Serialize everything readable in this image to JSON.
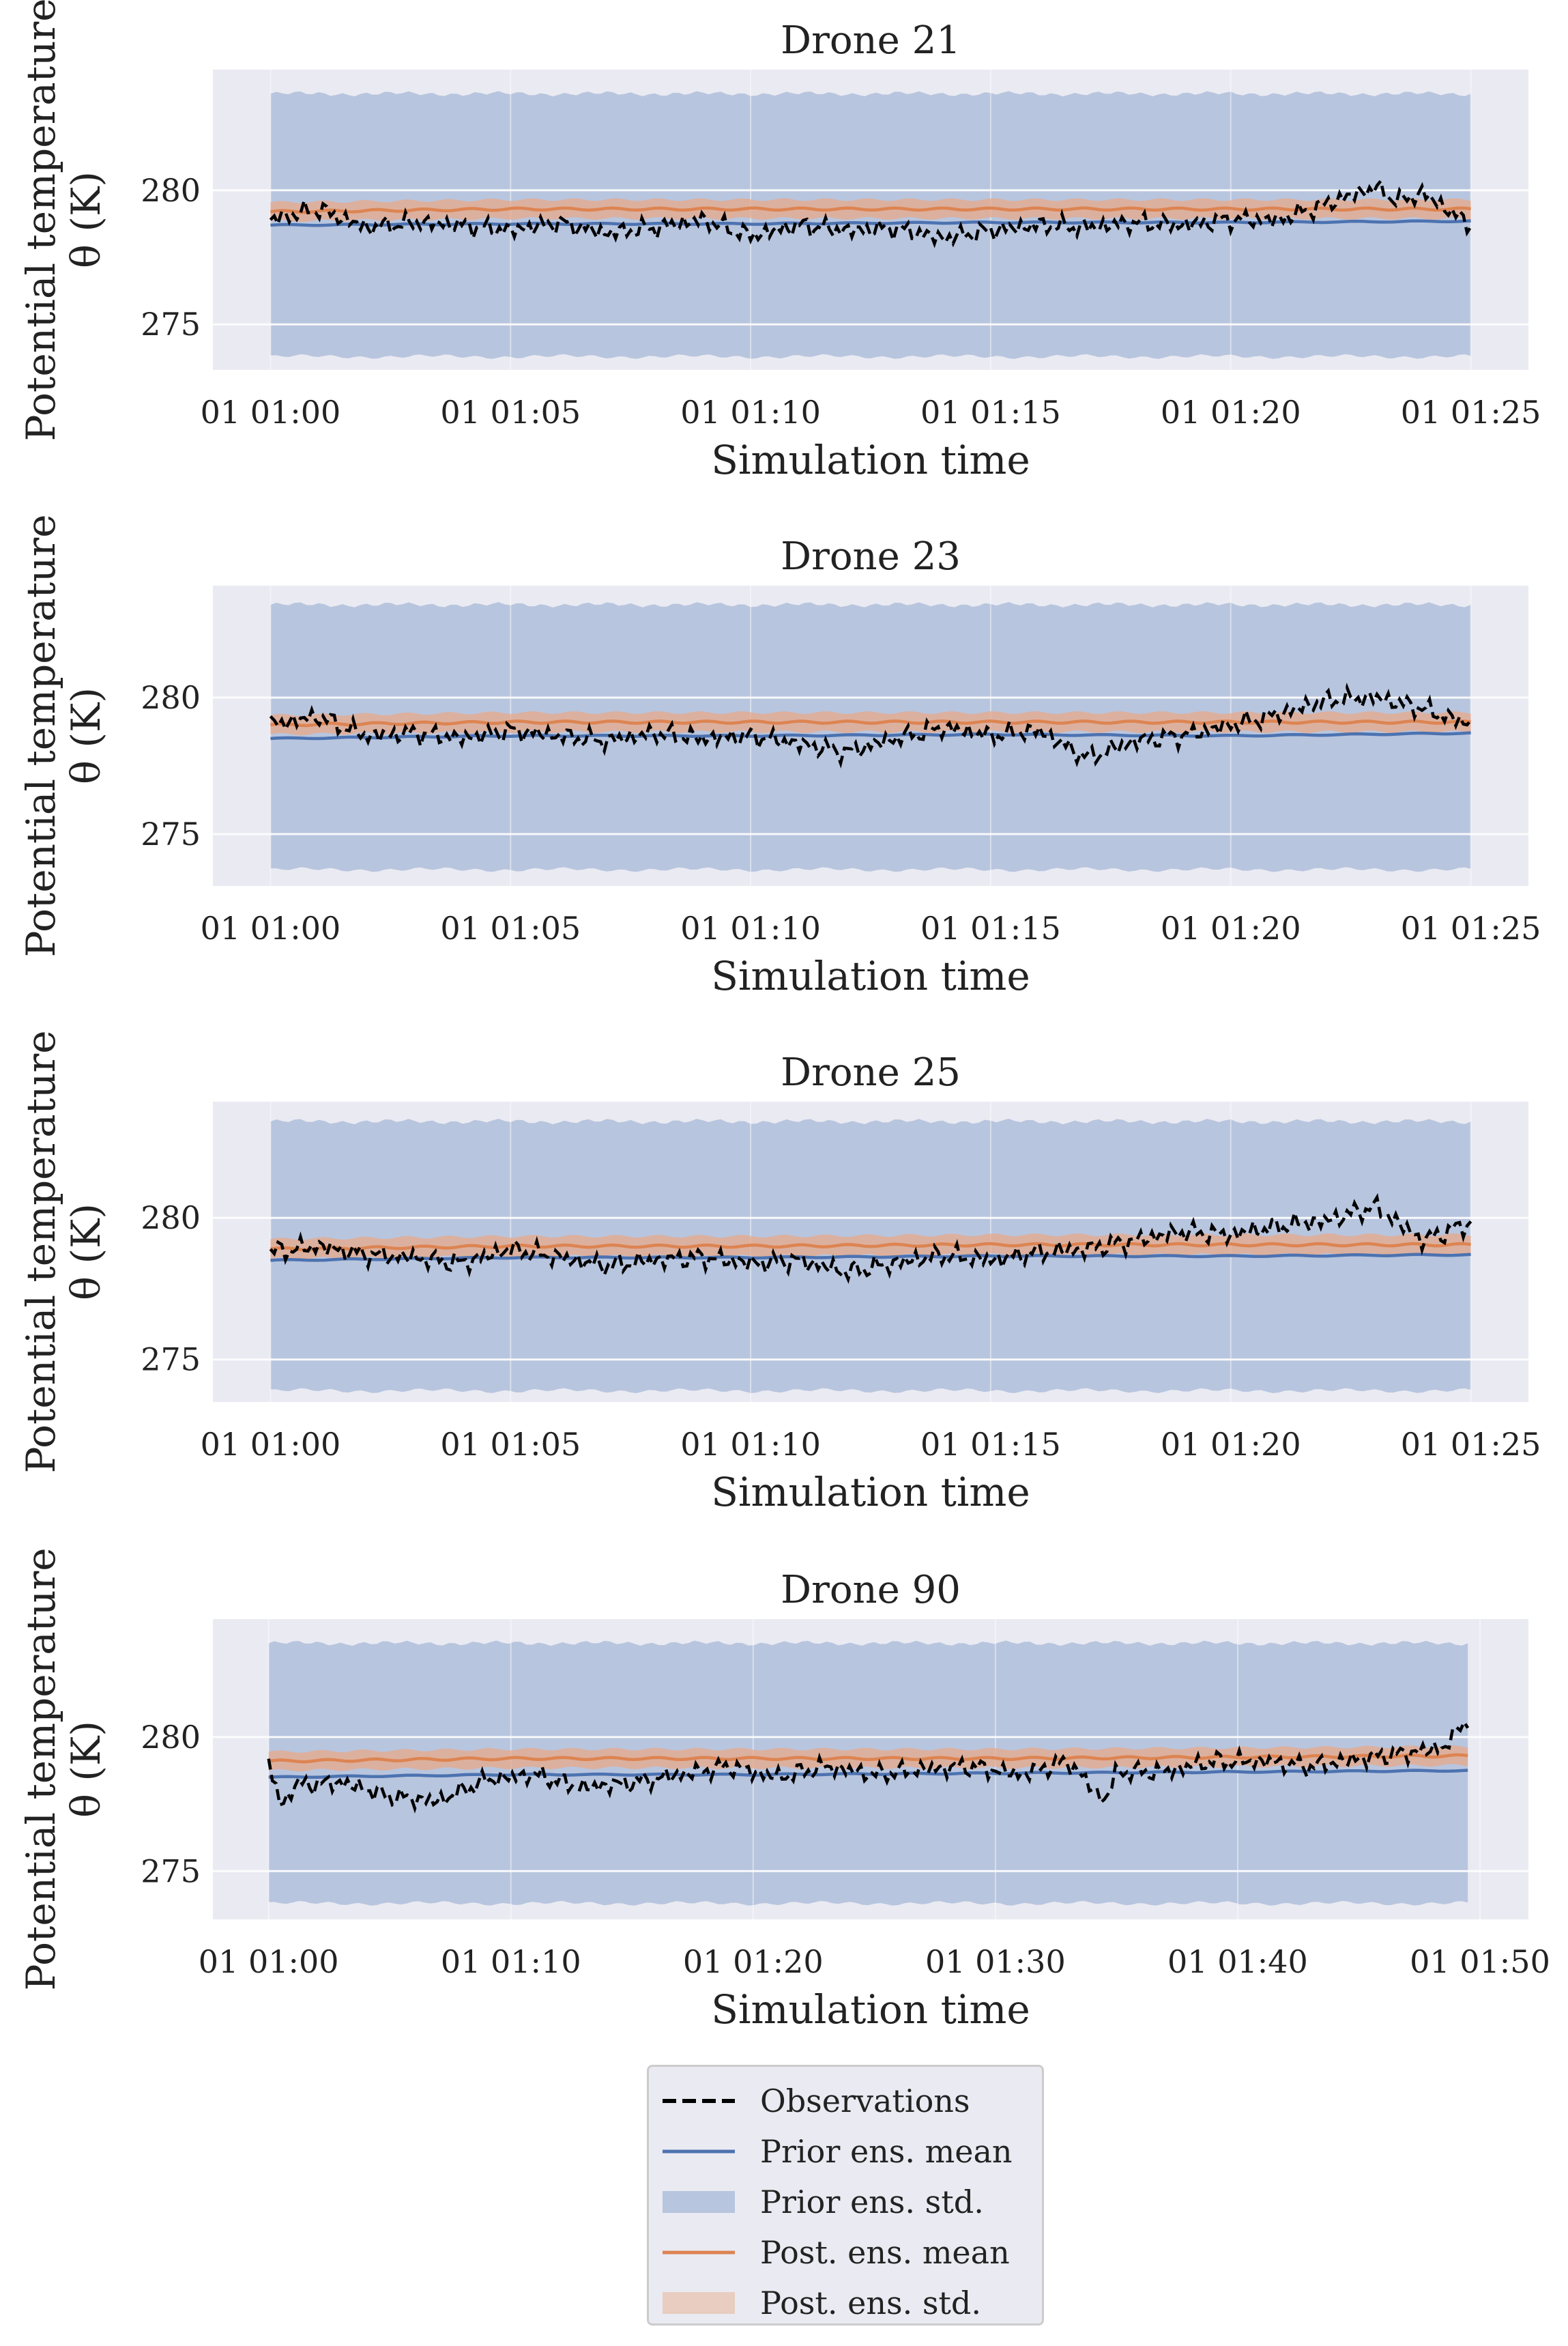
{
  "chart_data": [
    {
      "type": "line",
      "title": "Drone 21",
      "xlabel": "Simulation time",
      "ylabel_lines": [
        "Potential temperature",
        "θ (K)"
      ],
      "x_unit": "minutes after 01 01:00",
      "x_ticks": [
        0,
        5,
        10,
        15,
        20,
        25
      ],
      "x_tick_labels": [
        "01 01:00",
        "01 01:05",
        "01 01:10",
        "01 01:15",
        "01 01:20",
        "01 01:25"
      ],
      "xlim": [
        -1.2,
        26.2
      ],
      "x_end": 25,
      "y_ticks": [
        275,
        280
      ],
      "ylim": [
        273.3,
        284.5
      ],
      "series": [
        {
          "name": "Observations",
          "x": [
            0,
            1,
            2,
            3,
            4,
            5,
            6,
            7,
            8,
            9,
            10,
            11,
            12,
            13,
            14,
            15,
            16,
            17,
            18,
            19,
            20,
            21,
            22,
            23,
            23.5,
            24,
            25
          ],
          "values": [
            278.9,
            279.3,
            278.6,
            278.8,
            278.7,
            278.5,
            278.8,
            278.4,
            278.6,
            278.9,
            278.3,
            278.7,
            278.5,
            278.6,
            278.2,
            278.5,
            278.7,
            278.6,
            278.8,
            278.7,
            278.9,
            278.9,
            279.5,
            280.1,
            279.6,
            279.9,
            278.7
          ]
        },
        {
          "name": "Prior ens. mean",
          "x": [
            0,
            5,
            10,
            15,
            20,
            25
          ],
          "values": [
            278.7,
            278.75,
            278.75,
            278.8,
            278.8,
            278.85
          ]
        },
        {
          "name": "Post. ens. mean",
          "x": [
            0,
            5,
            10,
            15,
            20,
            25
          ],
          "values": [
            279.2,
            279.3,
            279.3,
            279.3,
            279.3,
            279.3
          ]
        }
      ],
      "prior_std_band": {
        "lower": 273.8,
        "upper": 283.6
      },
      "post_std_halfwidth": 0.35
    },
    {
      "type": "line",
      "title": "Drone 23",
      "xlabel": "Simulation time",
      "ylabel_lines": [
        "Potential temperature",
        "θ (K)"
      ],
      "x_unit": "minutes after 01 01:00",
      "x_ticks": [
        0,
        5,
        10,
        15,
        20,
        25
      ],
      "x_tick_labels": [
        "01 01:00",
        "01 01:05",
        "01 01:10",
        "01 01:15",
        "01 01:20",
        "01 01:25"
      ],
      "xlim": [
        -1.2,
        26.2
      ],
      "x_end": 25,
      "y_ticks": [
        275,
        280
      ],
      "ylim": [
        273.1,
        284.1
      ],
      "series": [
        {
          "name": "Observations",
          "x": [
            0,
            1,
            2,
            3,
            4,
            5,
            6,
            7,
            8,
            9,
            10,
            11,
            12,
            13,
            14,
            15,
            16,
            17,
            18,
            19,
            20,
            21,
            22,
            23,
            24,
            25
          ],
          "values": [
            279.0,
            279.3,
            278.6,
            278.7,
            278.5,
            278.8,
            278.6,
            278.4,
            278.7,
            278.5,
            278.6,
            278.3,
            278.0,
            278.5,
            278.9,
            278.6,
            278.8,
            277.8,
            278.4,
            278.6,
            279.0,
            279.4,
            279.9,
            280.0,
            279.6,
            279.0
          ]
        },
        {
          "name": "Prior ens. mean",
          "x": [
            0,
            5,
            10,
            15,
            20,
            25
          ],
          "values": [
            278.5,
            278.6,
            278.6,
            278.65,
            278.6,
            278.7
          ]
        },
        {
          "name": "Post. ens. mean",
          "x": [
            0,
            5,
            10,
            15,
            20,
            25
          ],
          "values": [
            279.0,
            279.1,
            279.1,
            279.1,
            279.1,
            279.1
          ]
        }
      ],
      "prior_std_band": {
        "lower": 273.7,
        "upper": 283.4
      },
      "post_std_halfwidth": 0.35
    },
    {
      "type": "line",
      "title": "Drone 25",
      "xlabel": "Simulation time",
      "ylabel_lines": [
        "Potential temperature",
        "θ (K)"
      ],
      "x_unit": "minutes after 01 01:00",
      "x_ticks": [
        0,
        5,
        10,
        15,
        20,
        25
      ],
      "x_tick_labels": [
        "01 01:00",
        "01 01:05",
        "01 01:10",
        "01 01:15",
        "01 01:20",
        "01 01:25"
      ],
      "xlim": [
        -1.2,
        26.2
      ],
      "x_end": 25,
      "y_ticks": [
        275,
        280
      ],
      "ylim": [
        273.5,
        284.1
      ],
      "series": [
        {
          "name": "Observations",
          "x": [
            0,
            1,
            2,
            3,
            4,
            5,
            6,
            7,
            8,
            9,
            10,
            11,
            12,
            13,
            14,
            15,
            16,
            17,
            18,
            19,
            20,
            21,
            22,
            23,
            24,
            25
          ],
          "values": [
            278.8,
            279.0,
            278.7,
            278.6,
            278.4,
            278.9,
            278.6,
            278.3,
            278.5,
            278.6,
            278.4,
            278.5,
            278.1,
            278.4,
            278.7,
            278.5,
            278.8,
            278.9,
            279.2,
            279.5,
            279.4,
            279.7,
            279.9,
            280.4,
            279.2,
            279.8
          ]
        },
        {
          "name": "Prior ens. mean",
          "x": [
            0,
            5,
            10,
            15,
            20,
            25
          ],
          "values": [
            278.5,
            278.6,
            278.6,
            278.65,
            278.65,
            278.7
          ]
        },
        {
          "name": "Post. ens. mean",
          "x": [
            0,
            5,
            10,
            15,
            20,
            25
          ],
          "values": [
            278.9,
            279.0,
            279.0,
            279.05,
            279.05,
            279.05
          ]
        }
      ],
      "prior_std_band": {
        "lower": 273.9,
        "upper": 283.4
      },
      "post_std_halfwidth": 0.35
    },
    {
      "type": "line",
      "title": "Drone 90",
      "xlabel": "Simulation time",
      "ylabel_lines": [
        "Potential temperature",
        "θ (K)"
      ],
      "x_unit": "minutes after 01 01:00",
      "x_ticks": [
        0,
        10,
        20,
        30,
        40,
        50
      ],
      "x_tick_labels": [
        "01 01:00",
        "01 01:10",
        "01 01:20",
        "01 01:30",
        "01 01:40",
        "01 01:50"
      ],
      "xlim": [
        -2.3,
        52
      ],
      "x_end": 49.5,
      "y_ticks": [
        275,
        280
      ],
      "ylim": [
        273.2,
        284.4
      ],
      "series": [
        {
          "name": "Observations",
          "x": [
            0,
            0.5,
            1,
            3,
            5,
            7,
            9,
            11,
            13,
            15,
            17,
            19,
            21,
            23,
            25,
            27,
            29,
            31,
            33,
            34.5,
            35,
            37,
            39,
            41,
            43,
            45,
            47,
            48.5,
            49.5
          ],
          "values": [
            279.2,
            277.3,
            278.2,
            278.3,
            277.8,
            277.6,
            278.4,
            278.6,
            278.1,
            278.3,
            278.6,
            278.9,
            278.5,
            278.9,
            278.6,
            278.8,
            278.9,
            278.6,
            279.1,
            277.6,
            278.7,
            278.7,
            279.1,
            279.1,
            278.9,
            279.2,
            279.4,
            279.6,
            280.7
          ]
        },
        {
          "name": "Prior ens. mean",
          "x": [
            0,
            10,
            20,
            30,
            40,
            49.5
          ],
          "values": [
            278.5,
            278.6,
            278.6,
            278.65,
            278.7,
            278.75
          ]
        },
        {
          "name": "Post. ens. mean",
          "x": [
            0,
            10,
            20,
            30,
            40,
            49.5
          ],
          "values": [
            279.1,
            279.2,
            279.2,
            279.2,
            279.25,
            279.3
          ]
        }
      ],
      "prior_std_band": {
        "lower": 273.8,
        "upper": 283.5
      },
      "post_std_halfwidth": 0.35
    }
  ],
  "legend": {
    "placement": "bottom-center",
    "items": [
      {
        "label": "Observations",
        "kind": "dashed-line",
        "color": "#000000"
      },
      {
        "label": "Prior ens. mean",
        "kind": "line",
        "color": "#4c72b0"
      },
      {
        "label": "Prior ens. std.",
        "kind": "patch",
        "color": "#b8c5de"
      },
      {
        "label": "Post. ens. mean",
        "kind": "line",
        "color": "#dd8452"
      },
      {
        "label": "Post. ens. std.",
        "kind": "patch",
        "color": "#e8cdc0"
      }
    ]
  },
  "colors": {
    "axes_background": "#eaeaf2",
    "grid": "#ffffff",
    "prior_band": "#b8c5de",
    "prior_mean": "#4c72b0",
    "post_band": "#e8a888",
    "post_mean": "#dd8452",
    "observations": "#000000"
  },
  "grid": true
}
